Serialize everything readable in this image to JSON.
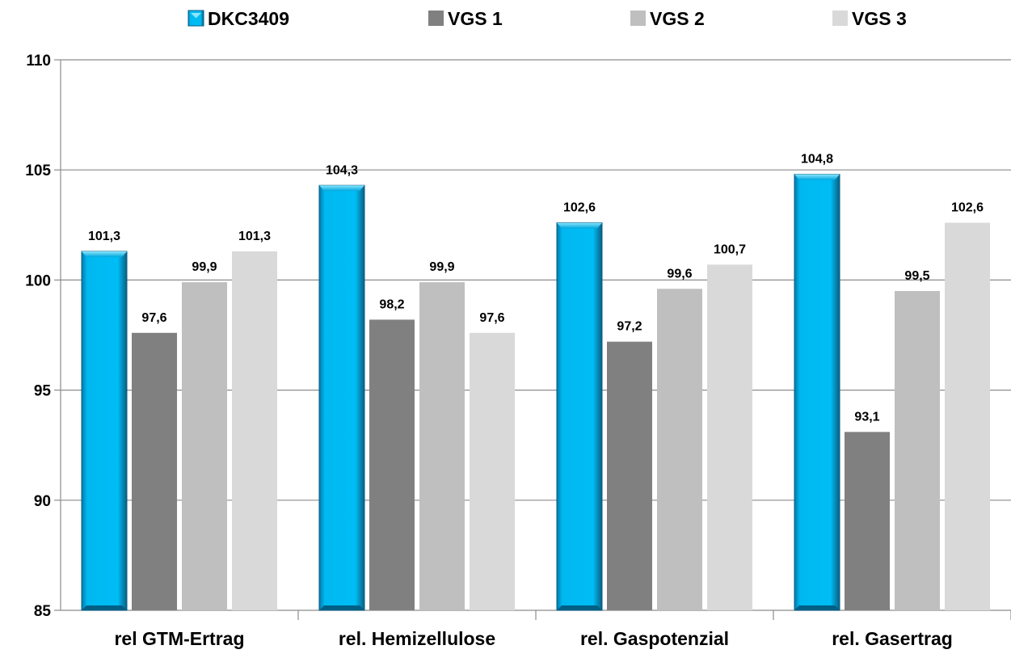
{
  "chart_data": {
    "type": "bar",
    "categories": [
      "rel GTM-Ertrag",
      "rel. Hemizellulose",
      "rel. Gaspotenzial",
      "rel. Gasertrag"
    ],
    "series": [
      {
        "name": "DKC3409",
        "values": [
          101.3,
          104.3,
          102.6,
          104.8
        ],
        "labels": [
          "101,3",
          "104,3",
          "102,6",
          "104,8"
        ],
        "color": "#00B8F0"
      },
      {
        "name": "VGS 1",
        "values": [
          97.6,
          98.2,
          97.2,
          93.1
        ],
        "labels": [
          "97,6",
          "98,2",
          "97,2",
          "93,1"
        ],
        "color": "#808080"
      },
      {
        "name": "VGS 2",
        "values": [
          99.9,
          99.9,
          99.6,
          99.5
        ],
        "labels": [
          "99,9",
          "99,9",
          "99,6",
          "99,5"
        ],
        "color": "#BFBFBF"
      },
      {
        "name": "VGS 3",
        "values": [
          101.3,
          97.6,
          100.7,
          102.6
        ],
        "labels": [
          "101,3",
          "97,6",
          "100,7",
          "102,6"
        ],
        "color": "#D9D9D9"
      }
    ],
    "yticks": [
      "85",
      "90",
      "95",
      "100",
      "105",
      "110"
    ],
    "ylim": [
      85,
      110
    ],
    "grid": true,
    "legend": "top",
    "xlabel": "",
    "ylabel": "",
    "title": ""
  }
}
